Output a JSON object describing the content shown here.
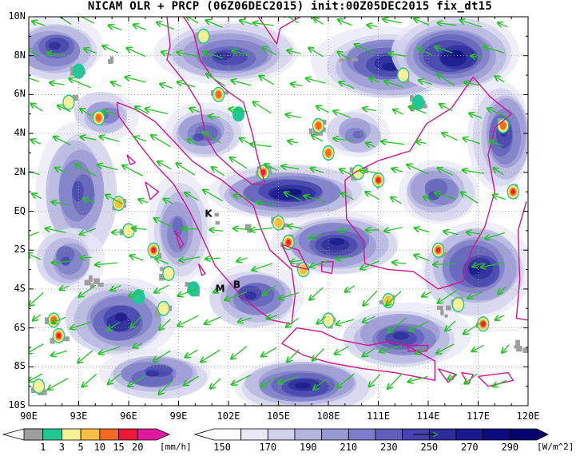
{
  "title": "NICAM OLR + PRCP (06Z06DEC2015) init:00Z05DEC2015 fix_dt15",
  "map": {
    "lat_labels": [
      "10N",
      "8N",
      "6N",
      "4N",
      "2N",
      "EQ",
      "2S",
      "4S",
      "6S",
      "8S",
      "10S"
    ],
    "lon_labels": [
      "90E",
      "93E",
      "96E",
      "99E",
      "102E",
      "105E",
      "108E",
      "111E",
      "114E",
      "117E",
      "120E"
    ],
    "lat_range": [
      -10,
      10
    ],
    "lon_range": [
      90,
      120
    ],
    "grid": "dotted",
    "annotations": [
      {
        "text": "K",
        "lon": 100.8,
        "lat": -0.15
      },
      {
        "text": "M",
        "lon": 101.5,
        "lat": -4.0
      },
      {
        "text": "B",
        "lon": 102.5,
        "lat": -3.8
      }
    ],
    "coastline_color": "#d4148c",
    "wind_vector_color": "#22c422"
  },
  "precip_colorbar": {
    "labels": [
      "1",
      "3",
      "5",
      "10",
      "15",
      "20"
    ],
    "unit": "[mm/h]",
    "colors": [
      "#9e9e9e",
      "#20c896",
      "#f8f096",
      "#f8c040",
      "#f86820",
      "#f01838",
      "#e018a0"
    ]
  },
  "olr_colorbar": {
    "labels": [
      "150",
      "170",
      "190",
      "210",
      "230",
      "250",
      "270",
      "290"
    ],
    "unit": "[W/m^2]",
    "colors": [
      "#ffffff",
      "#e8e8f6",
      "#d0d0ec",
      "#b4b4e0",
      "#9898d4",
      "#7c7cc8",
      "#6060ba",
      "#4444ac",
      "#2c2c9c",
      "#1a1a8c",
      "#0c0c7e",
      "#04046c"
    ]
  }
}
